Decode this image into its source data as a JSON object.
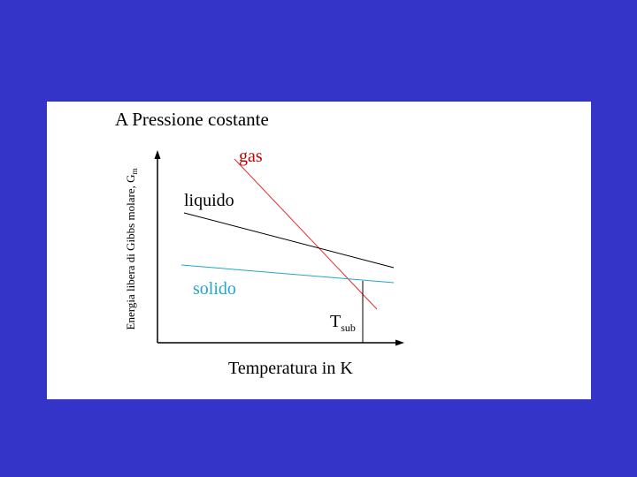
{
  "title": "A Pressione costante",
  "y_axis": {
    "label": "Energia libera di Gibbs molare, G",
    "subscript": "m"
  },
  "x_axis": {
    "label": "Temperatura in K"
  },
  "curves": {
    "gas": "gas",
    "liquido": "liquido",
    "solido": "solido"
  },
  "marker": {
    "label": "T",
    "subscript": "sub"
  }
}
